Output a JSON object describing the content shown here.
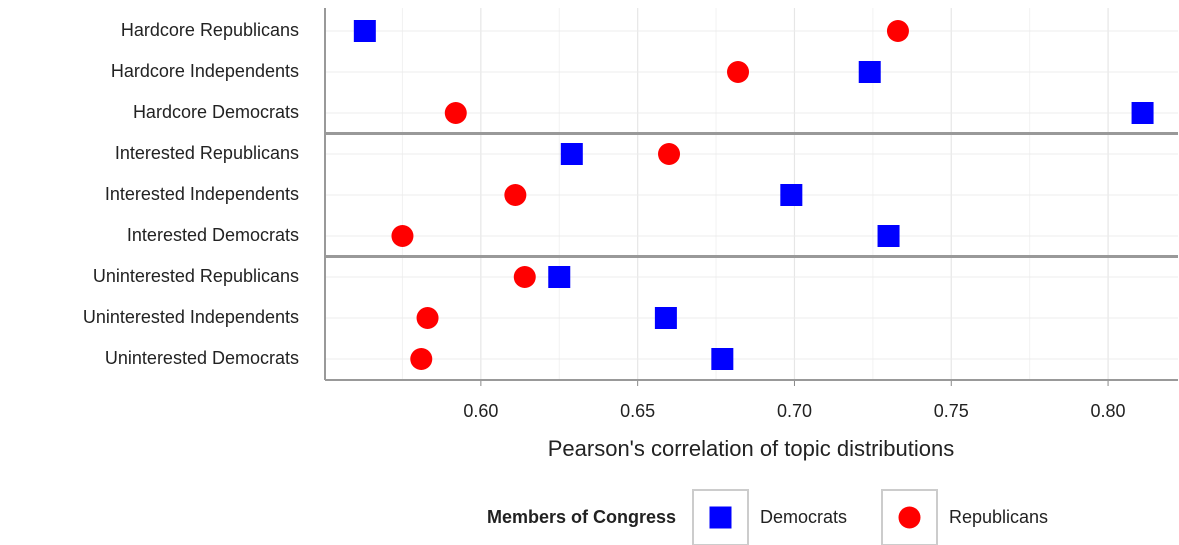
{
  "chart_data": {
    "type": "dot",
    "xlabel": "Pearson's correlation of topic distributions",
    "categories": [
      "Hardcore Republicans",
      "Hardcore Independents",
      "Hardcore Democrats",
      "Interested Republicans",
      "Interested Independents",
      "Interested Democrats",
      "Uninterested Republicans",
      "Uninterested Independents",
      "Uninterested Democrats"
    ],
    "series": [
      {
        "name": "Democrats",
        "color": "#0000ff",
        "shape": "square",
        "values": [
          0.563,
          0.724,
          0.811,
          0.629,
          0.699,
          0.73,
          0.625,
          0.659,
          0.677
        ]
      },
      {
        "name": "Republicans",
        "color": "#ff0000",
        "shape": "circle",
        "values": [
          0.733,
          0.682,
          0.592,
          0.66,
          0.611,
          0.575,
          0.614,
          0.583,
          0.581
        ]
      }
    ],
    "legend_title": "Members of Congress",
    "xlim": [
      0.5503,
      0.8223
    ],
    "xticks": [
      {
        "value": 0.6,
        "label": "0.60"
      },
      {
        "value": 0.65,
        "label": "0.65"
      },
      {
        "value": 0.7,
        "label": "0.70"
      },
      {
        "value": 0.75,
        "label": "0.75"
      },
      {
        "value": 0.8,
        "label": "0.80"
      }
    ],
    "grid": true
  }
}
